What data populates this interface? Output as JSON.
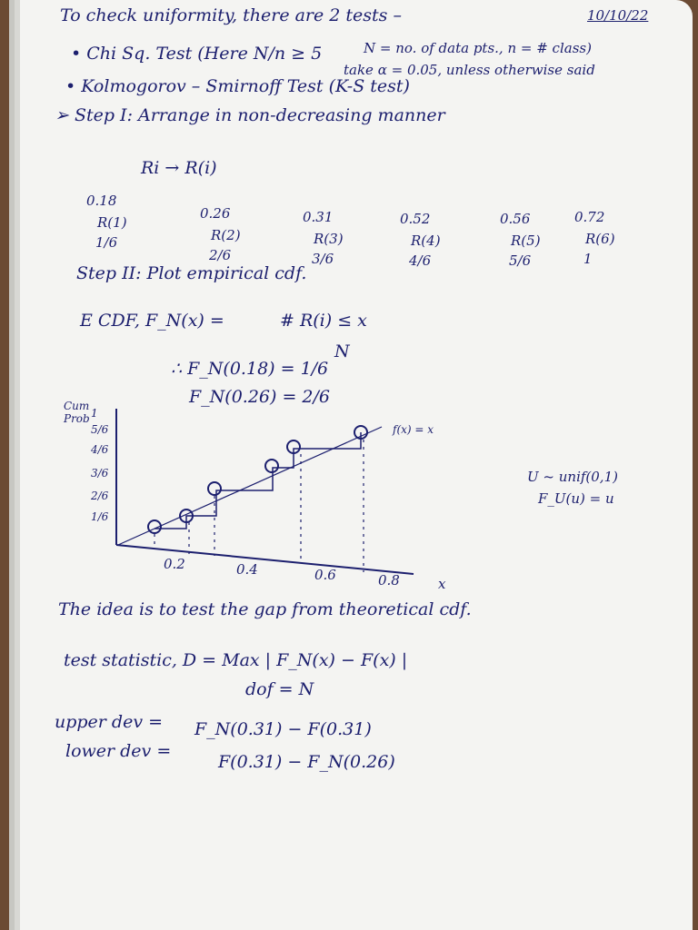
{
  "header": {
    "title": "To check uniformity, there are 2 tests –",
    "date": "10/10/22"
  },
  "tests": {
    "chi_square": {
      "label": "• Chi Sq. Test (Here N/n ≥ 5",
      "note": "N = no. of data pts., n = # class)",
      "alpha": "take α = 0.05, unless otherwise said"
    },
    "ks": {
      "label": "• Kolmogorov – Smirnoff Test (K-S test)"
    }
  },
  "step1": {
    "title": "➢ Step I: Arrange in non-decreasing manner",
    "mapping": "Ri → R(i)",
    "sorted": [
      {
        "value": "0.18",
        "rank": "R(1)",
        "fraction": "1/6"
      },
      {
        "value": "0.26",
        "rank": "R(2)",
        "fraction": "2/6"
      },
      {
        "value": "0.31",
        "rank": "R(3)",
        "fraction": "3/6"
      },
      {
        "value": "0.52",
        "rank": "R(4)",
        "fraction": "4/6"
      },
      {
        "value": "0.56",
        "rank": "R(5)",
        "fraction": "5/6"
      },
      {
        "value": "0.72",
        "rank": "R(6)",
        "fraction": "1"
      }
    ]
  },
  "step2": {
    "title": "Step II: Plot empirical cdf.",
    "ecdf": "E CDF,   F_N(x) = ",
    "numerator": "# R(i) ≤ x",
    "denominator": "N",
    "examples": [
      "∴ F_N(0.18) = 1/6",
      "F_N(0.26) = 2/6"
    ]
  },
  "graph": {
    "y_label": "Cum Prob",
    "yticks": [
      "1/6",
      "2/6",
      "3/6",
      "4/6",
      "5/6",
      "1"
    ],
    "xticks": [
      "0.2",
      "0.4",
      "0.6",
      "0.8"
    ],
    "x_label": "x",
    "line_label": "f(x) = x",
    "annotation": [
      "U ~ unif(0,1)",
      "F_U(u) = u"
    ]
  },
  "body": {
    "idea": "The idea is to test the gap from theoretical cdf.",
    "statistic": "test statistic, D = Max | F_N(x) − F(x) |",
    "dof": "dof = N",
    "upper": "upper dev = ",
    "upper_expr": "F_N(0.31) − F(0.31)",
    "lower": "lower dev = ",
    "lower_expr": "F(0.31) − F_N(0.26)"
  }
}
